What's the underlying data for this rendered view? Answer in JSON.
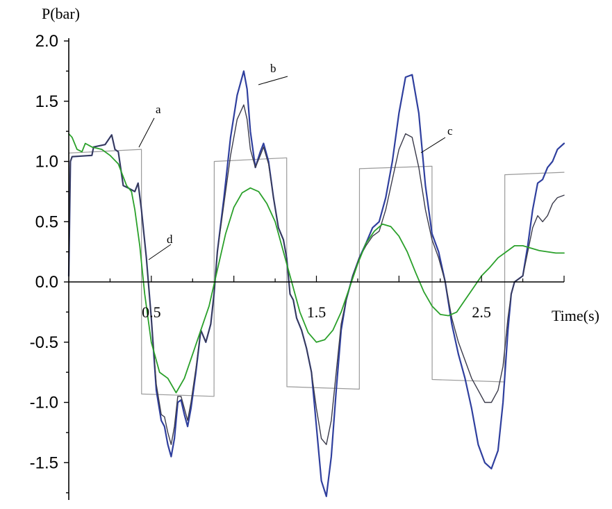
{
  "chart_data": {
    "type": "line",
    "ylabel": "P(bar)",
    "xlabel": "Time(s)",
    "xlim": [
      0,
      3
    ],
    "ylim": [
      -1.75,
      2.0
    ],
    "y_ticks": [
      "2.0",
      "1.5",
      "1.0",
      "0.5",
      "0.0",
      "-0.5",
      "-1.0",
      "-1.5"
    ],
    "x_ticks": [
      "0.5",
      "1.5",
      "2.5"
    ],
    "grid": false,
    "series": [
      {
        "name": "a",
        "color": "#9a9a9a",
        "x": [
          0.0,
          0.001,
          0.44,
          0.441,
          0.88,
          0.881,
          1.32,
          1.321,
          1.76,
          1.761,
          2.2,
          2.201,
          2.64,
          2.641,
          3.0
        ],
        "y": [
          0.0,
          1.07,
          1.1,
          -0.93,
          -0.95,
          1.0,
          1.03,
          -0.87,
          -0.89,
          0.94,
          0.96,
          -0.81,
          -0.83,
          0.89,
          0.91
        ]
      },
      {
        "name": "b",
        "color": "#2f3f9e",
        "x": [
          0.0,
          0.01,
          0.02,
          0.14,
          0.15,
          0.22,
          0.26,
          0.28,
          0.3,
          0.33,
          0.36,
          0.4,
          0.42,
          0.44,
          0.47,
          0.5,
          0.53,
          0.56,
          0.58,
          0.6,
          0.62,
          0.64,
          0.66,
          0.68,
          0.7,
          0.72,
          0.74,
          0.77,
          0.8,
          0.83,
          0.86,
          0.88,
          0.9,
          0.94,
          0.98,
          1.02,
          1.06,
          1.08,
          1.1,
          1.13,
          1.16,
          1.18,
          1.21,
          1.24,
          1.27,
          1.3,
          1.32,
          1.34,
          1.36,
          1.38,
          1.41,
          1.44,
          1.47,
          1.5,
          1.53,
          1.56,
          1.59,
          1.62,
          1.65,
          1.68,
          1.72,
          1.76,
          1.8,
          1.84,
          1.88,
          1.92,
          1.96,
          2.0,
          2.04,
          2.08,
          2.12,
          2.16,
          2.2,
          2.24,
          2.28,
          2.32,
          2.36,
          2.4,
          2.44,
          2.48,
          2.52,
          2.56,
          2.6,
          2.63,
          2.66,
          2.68,
          2.7,
          2.72,
          2.75,
          2.78,
          2.81,
          2.84,
          2.87,
          2.9,
          2.93,
          2.96,
          3.0
        ],
        "y": [
          0.05,
          1.0,
          1.04,
          1.05,
          1.12,
          1.14,
          1.22,
          1.1,
          1.08,
          0.8,
          0.78,
          0.75,
          0.82,
          0.6,
          0.2,
          -0.3,
          -0.9,
          -1.15,
          -1.2,
          -1.35,
          -1.45,
          -1.3,
          -1.0,
          -0.98,
          -1.1,
          -1.2,
          -1.05,
          -0.75,
          -0.4,
          -0.5,
          -0.35,
          -0.1,
          0.25,
          0.7,
          1.2,
          1.55,
          1.75,
          1.6,
          1.25,
          0.95,
          1.08,
          1.15,
          1.0,
          0.7,
          0.45,
          0.35,
          0.2,
          -0.1,
          -0.15,
          -0.3,
          -0.4,
          -0.55,
          -0.75,
          -1.2,
          -1.65,
          -1.78,
          -1.45,
          -0.9,
          -0.4,
          -0.15,
          0.05,
          0.2,
          0.32,
          0.45,
          0.5,
          0.7,
          1.0,
          1.4,
          1.7,
          1.72,
          1.4,
          0.8,
          0.4,
          0.25,
          0.0,
          -0.35,
          -0.6,
          -0.8,
          -1.05,
          -1.35,
          -1.5,
          -1.55,
          -1.4,
          -1.0,
          -0.4,
          -0.1,
          0.0,
          0.02,
          0.05,
          0.3,
          0.6,
          0.82,
          0.85,
          0.95,
          1.0,
          1.1,
          1.15
        ]
      },
      {
        "name": "c",
        "color": "#3a3a4a",
        "x": [
          0.0,
          0.01,
          0.02,
          0.14,
          0.15,
          0.22,
          0.26,
          0.28,
          0.3,
          0.33,
          0.36,
          0.4,
          0.42,
          0.44,
          0.47,
          0.5,
          0.53,
          0.56,
          0.58,
          0.6,
          0.62,
          0.64,
          0.66,
          0.68,
          0.7,
          0.72,
          0.74,
          0.77,
          0.8,
          0.83,
          0.86,
          0.88,
          0.9,
          0.94,
          0.98,
          1.02,
          1.06,
          1.08,
          1.1,
          1.13,
          1.16,
          1.18,
          1.21,
          1.24,
          1.27,
          1.3,
          1.32,
          1.34,
          1.36,
          1.38,
          1.41,
          1.44,
          1.47,
          1.5,
          1.53,
          1.56,
          1.59,
          1.62,
          1.65,
          1.68,
          1.72,
          1.76,
          1.8,
          1.84,
          1.88,
          1.92,
          1.96,
          2.0,
          2.04,
          2.08,
          2.12,
          2.16,
          2.2,
          2.24,
          2.28,
          2.32,
          2.36,
          2.4,
          2.44,
          2.48,
          2.52,
          2.56,
          2.6,
          2.63,
          2.66,
          2.68,
          2.7,
          2.72,
          2.75,
          2.78,
          2.81,
          2.84,
          2.87,
          2.9,
          2.93,
          2.96,
          3.0
        ],
        "y": [
          0.05,
          1.0,
          1.04,
          1.05,
          1.12,
          1.14,
          1.22,
          1.1,
          1.08,
          0.8,
          0.78,
          0.75,
          0.82,
          0.6,
          0.2,
          -0.3,
          -0.85,
          -1.1,
          -1.12,
          -1.25,
          -1.35,
          -1.2,
          -0.95,
          -0.95,
          -1.05,
          -1.15,
          -1.0,
          -0.72,
          -0.4,
          -0.5,
          -0.35,
          -0.1,
          0.25,
          0.65,
          1.05,
          1.35,
          1.47,
          1.35,
          1.1,
          0.95,
          1.05,
          1.12,
          0.98,
          0.7,
          0.45,
          0.35,
          0.2,
          -0.1,
          -0.15,
          -0.3,
          -0.4,
          -0.55,
          -0.75,
          -1.05,
          -1.3,
          -1.35,
          -1.15,
          -0.75,
          -0.35,
          -0.15,
          0.05,
          0.2,
          0.3,
          0.38,
          0.42,
          0.6,
          0.85,
          1.1,
          1.23,
          1.2,
          0.95,
          0.6,
          0.35,
          0.2,
          0.0,
          -0.3,
          -0.5,
          -0.65,
          -0.8,
          -0.9,
          -1.0,
          -1.0,
          -0.9,
          -0.7,
          -0.3,
          -0.1,
          0.0,
          0.02,
          0.05,
          0.25,
          0.45,
          0.55,
          0.5,
          0.55,
          0.65,
          0.7,
          0.72
        ]
      },
      {
        "name": "d",
        "color": "#2aa02a",
        "x": [
          0.0,
          0.02,
          0.05,
          0.08,
          0.1,
          0.14,
          0.2,
          0.25,
          0.3,
          0.35,
          0.38,
          0.4,
          0.43,
          0.46,
          0.5,
          0.55,
          0.6,
          0.65,
          0.7,
          0.75,
          0.8,
          0.85,
          0.9,
          0.95,
          1.0,
          1.05,
          1.1,
          1.15,
          1.2,
          1.25,
          1.3,
          1.35,
          1.4,
          1.45,
          1.5,
          1.55,
          1.6,
          1.65,
          1.7,
          1.75,
          1.8,
          1.85,
          1.9,
          1.95,
          2.0,
          2.05,
          2.1,
          2.15,
          2.2,
          2.25,
          2.3,
          2.35,
          2.4,
          2.45,
          2.5,
          2.55,
          2.6,
          2.65,
          2.7,
          2.75,
          2.8,
          2.85,
          2.9,
          2.95,
          3.0
        ],
        "y": [
          1.23,
          1.2,
          1.1,
          1.08,
          1.15,
          1.12,
          1.1,
          1.05,
          0.98,
          0.8,
          0.75,
          0.6,
          0.3,
          -0.1,
          -0.5,
          -0.75,
          -0.8,
          -0.92,
          -0.8,
          -0.6,
          -0.4,
          -0.2,
          0.1,
          0.4,
          0.62,
          0.74,
          0.78,
          0.75,
          0.65,
          0.5,
          0.25,
          0.0,
          -0.25,
          -0.42,
          -0.5,
          -0.48,
          -0.4,
          -0.25,
          -0.05,
          0.15,
          0.32,
          0.42,
          0.48,
          0.46,
          0.38,
          0.25,
          0.08,
          -0.08,
          -0.2,
          -0.27,
          -0.28,
          -0.25,
          -0.15,
          -0.05,
          0.05,
          0.12,
          0.2,
          0.25,
          0.3,
          0.3,
          0.28,
          0.26,
          0.25,
          0.24,
          0.24
        ]
      }
    ]
  }
}
